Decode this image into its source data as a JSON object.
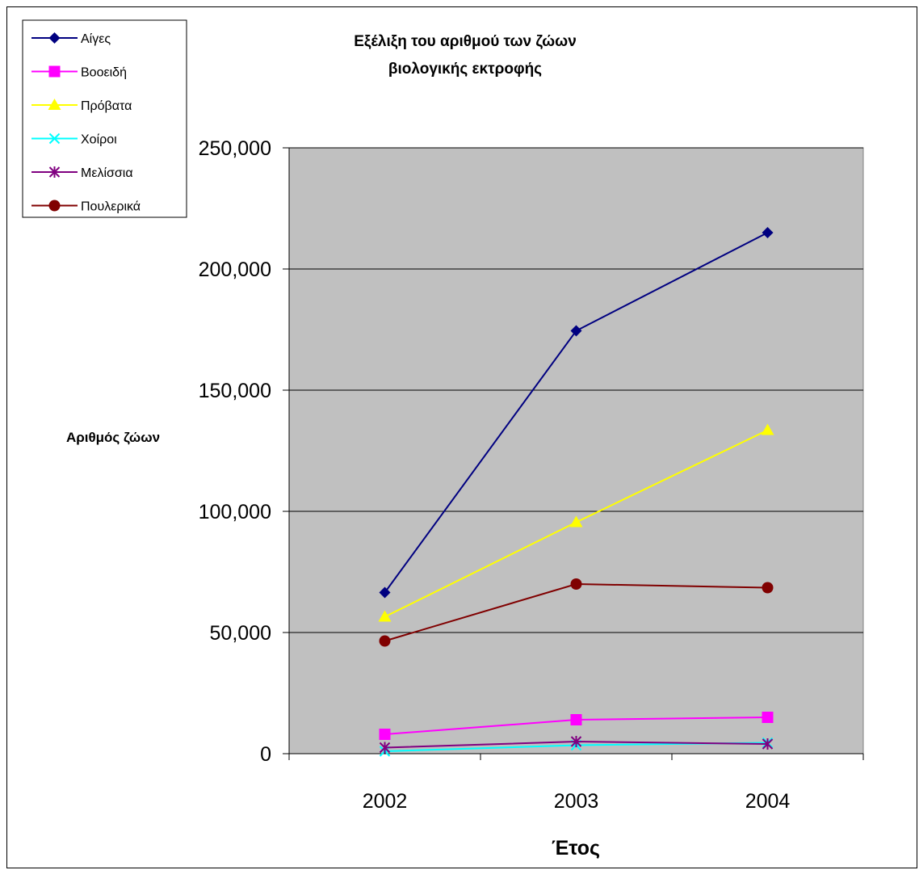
{
  "chart_data": {
    "type": "line",
    "title": "Εξέλιξη του αριθμού των ζώων βιολογικής εκτροφής",
    "title_lines": [
      "Εξέλιξη του αριθμού των ζώων",
      "βιολογικής εκτροφής"
    ],
    "xlabel": "Έτος",
    "ylabel": "Αριθμός ζώων",
    "categories": [
      "2002",
      "2003",
      "2004"
    ],
    "ylim": [
      0,
      250000
    ],
    "yticks": [
      0,
      50000,
      100000,
      150000,
      200000,
      250000
    ],
    "ytick_labels": [
      "0",
      "50,000",
      "100,000",
      "150,000",
      "200,000",
      "250,000"
    ],
    "grid": true,
    "legend_position": "top-left",
    "plot_background": "#c0c0c0",
    "series": [
      {
        "name": "Αίγες",
        "color": "#000080",
        "marker": "diamond",
        "values": [
          66500,
          174500,
          215000
        ]
      },
      {
        "name": "Βοοειδή",
        "color": "#ff00ff",
        "marker": "square",
        "values": [
          8000,
          14000,
          15000
        ]
      },
      {
        "name": "Πρόβατα",
        "color": "#ffff00",
        "marker": "triangle",
        "values": [
          56500,
          95500,
          133500
        ]
      },
      {
        "name": "Χοίροι",
        "color": "#00ffff",
        "marker": "x",
        "values": [
          1000,
          3500,
          4500
        ]
      },
      {
        "name": "Μελίσσια",
        "color": "#800080",
        "marker": "asterisk",
        "values": [
          2500,
          5000,
          4000
        ]
      },
      {
        "name": "Πουλερικά",
        "color": "#800000",
        "marker": "circle",
        "values": [
          46500,
          70000,
          68500
        ]
      }
    ]
  }
}
